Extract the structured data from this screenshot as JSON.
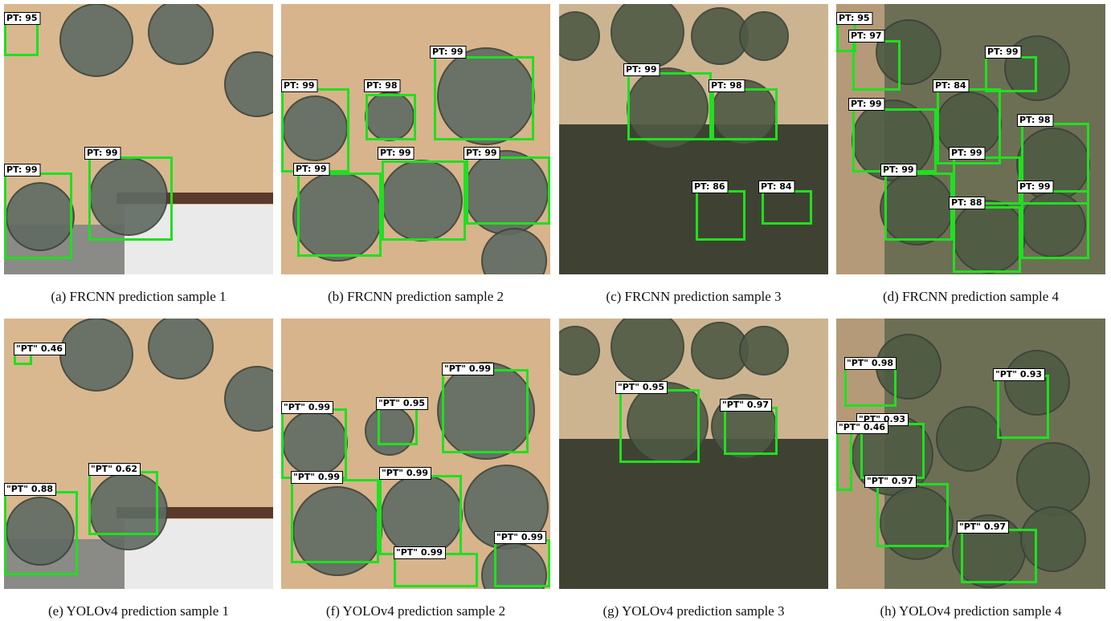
{
  "panels": [
    {
      "caption": "(a) FRCNN prediction sample 1",
      "labels": [
        "PT: 95",
        "PT: 99",
        "PT: 99"
      ]
    },
    {
      "caption": "(b) FRCNN prediction sample 2",
      "labels": [
        "PT: 99",
        "PT: 99",
        "PT: 98",
        "PT: 99",
        "PT: 99",
        "PT: 99"
      ]
    },
    {
      "caption": "(c) FRCNN prediction sample 3",
      "labels": [
        "PT: 99",
        "PT: 98",
        "PT: 86",
        "PT: 84"
      ]
    },
    {
      "caption": "(d) FRCNN prediction sample 4",
      "labels": [
        "PT: 95",
        "PT: 97",
        "PT: 99",
        "PT: 84",
        "PT: 99",
        "PT: 98",
        "PT: 99",
        "PT: 99",
        "PT: 99",
        "PT: 88"
      ]
    },
    {
      "caption": "(e) YOLOv4 prediction sample 1",
      "labels": [
        "\"PT\" 0.46",
        "\"PT\" 0.62",
        "\"PT\" 0.88"
      ]
    },
    {
      "caption": "(f) YOLOv4 prediction sample 2",
      "labels": [
        "\"PT\" 0.99",
        "\"PT\" 0.95",
        "\"PT\" 0.99",
        "\"PT\" 0.99",
        "\"PT\" 0.99",
        "\"PT\" 0.99",
        "\"PT\" 0.99"
      ]
    },
    {
      "caption": "(g) YOLOv4 prediction sample 3",
      "labels": [
        "\"PT\" 0.95",
        "\"PT\" 0.97"
      ]
    },
    {
      "caption": "(h) YOLOv4 prediction sample 4",
      "labels": [
        "\"PT\" 0.98",
        "\"PT\" 0.93",
        "\"PT\" 0.93",
        "\"PT\" 0.46",
        "\"PT\" 0.97",
        "\"PT\" 0.97"
      ]
    }
  ]
}
